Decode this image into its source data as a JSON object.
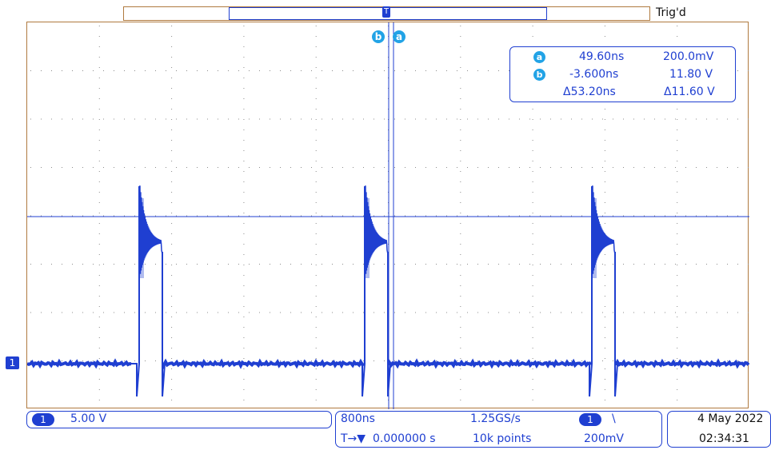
{
  "top": {
    "trigger_status": "Trig'd",
    "trigger_marker": "T"
  },
  "channel": {
    "marker": "1"
  },
  "cursors": {
    "a": {
      "label": "a",
      "time": "49.60ns",
      "voltage": "200.0mV"
    },
    "b": {
      "label": "b",
      "time": "-3.600ns",
      "voltage": "11.80 V"
    },
    "delta_time": "Δ53.20ns",
    "delta_voltage": "Δ11.60 V"
  },
  "bottom": {
    "channel_badge": "1",
    "channel_scale": "5.00 V",
    "timebase": "800ns",
    "sample_rate": "1.25GS/s",
    "trigger_badge": "1",
    "trigger_slope": "\\",
    "horizontal_pos_prefix": "T→▼",
    "horizontal_position": "0.000000 s",
    "record_length": "10k points",
    "trigger_level": "200mV",
    "date": "4 May 2022",
    "time": "02:34:31"
  },
  "colors": {
    "trace": "#1f3fd1",
    "cursor_badge": "#22a3e6",
    "grid_border": "#b07a3f"
  }
}
